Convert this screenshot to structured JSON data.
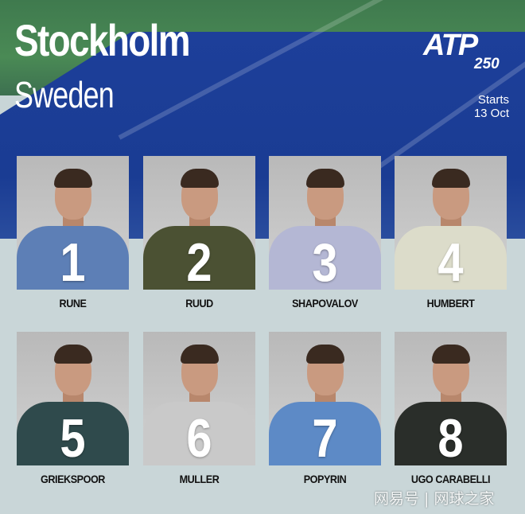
{
  "header": {
    "city": "Stockholm",
    "country": "Sweden",
    "logo_text": "ATP",
    "logo_tier": "250",
    "starts_label": "Starts",
    "start_date": "13 Oct"
  },
  "players": [
    {
      "seed": "1",
      "name": "RUNE",
      "shirt": "#5d7fb6"
    },
    {
      "seed": "2",
      "name": "RUUD",
      "shirt": "#4b5133"
    },
    {
      "seed": "3",
      "name": "SHAPOVALOV",
      "shirt": "#b4b7d4"
    },
    {
      "seed": "4",
      "name": "HUMBERT",
      "shirt": "#dcdcca"
    },
    {
      "seed": "5",
      "name": "GRIEKSPOOR",
      "shirt": "#2f4a4c"
    },
    {
      "seed": "6",
      "name": "MULLER",
      "shirt": "#c9c9c9"
    },
    {
      "seed": "7",
      "name": "POPYRIN",
      "shirt": "#5d8ac6"
    },
    {
      "seed": "8",
      "name": "UGO CARABELLI",
      "shirt": "#2a2e2a"
    }
  ],
  "watermark": "网易号 | 网球之家",
  "colors": {
    "court_blue": "#1d3f9a",
    "grass_green": "#4a8a55",
    "background": "#c9d6d8"
  }
}
